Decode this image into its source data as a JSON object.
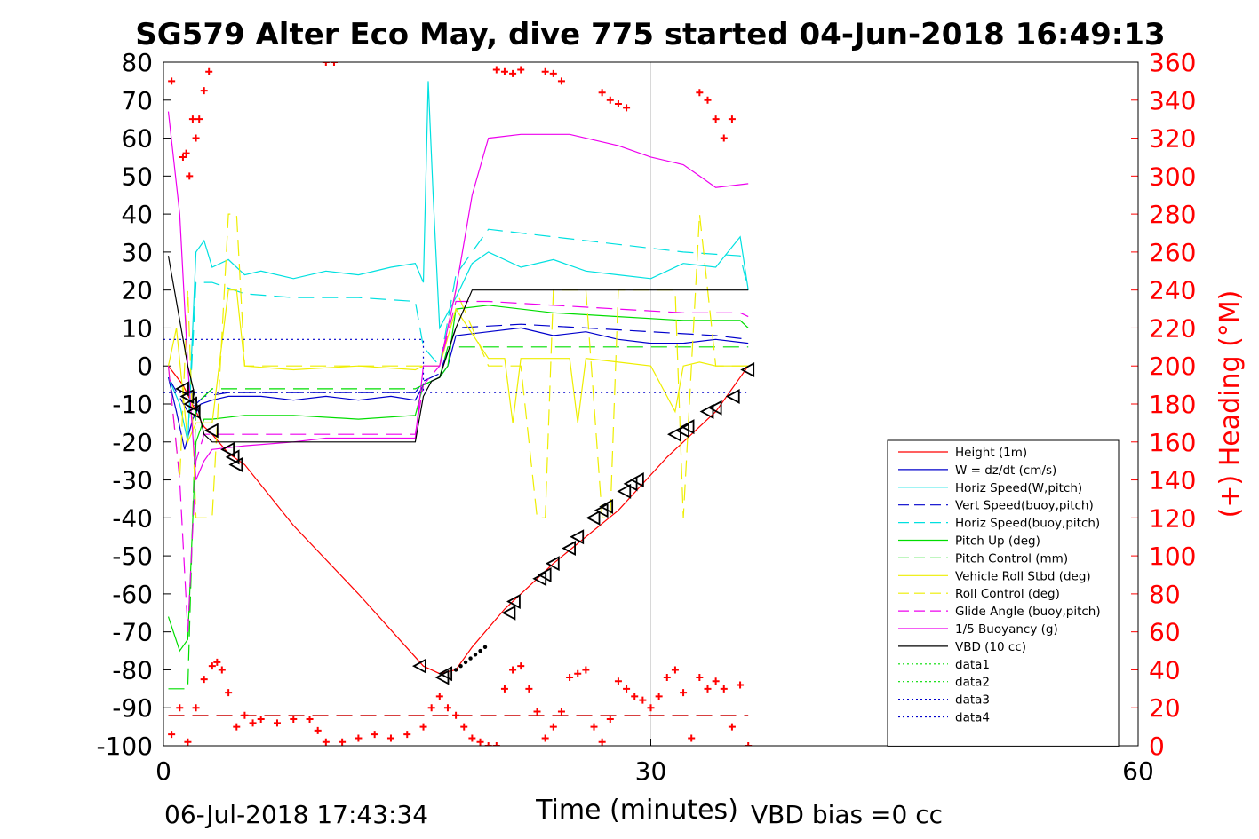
{
  "chart_data": {
    "type": "line",
    "title": "SG579 Alter Eco May, dive 775 started 04-Jun-2018 16:49:13",
    "xlabel": "Time (minutes)",
    "ylabel_right": "(+) Heading (°M)",
    "footer_left": "06-Jul-2018 17:43:34",
    "footer_right": "VBD bias =0 cc",
    "xlim": [
      0,
      60
    ],
    "ylim": [
      -100,
      80
    ],
    "ylim_right": [
      0,
      360
    ],
    "x_ticks": [
      0,
      30,
      60
    ],
    "x_tick_labels": [
      "0",
      "30",
      "60"
    ],
    "y_ticks": [
      80,
      70,
      60,
      50,
      40,
      30,
      20,
      10,
      0,
      -10,
      -20,
      -30,
      -40,
      -50,
      -60,
      -70,
      -80,
      -90,
      -100
    ],
    "y_tick_labels": [
      "80",
      "70",
      "60",
      "50",
      "40",
      "30",
      "20",
      "10",
      "0",
      "-10",
      "-20",
      "-30",
      "-40",
      "-50",
      "-60",
      "-70",
      "-80",
      "-90",
      "-100"
    ],
    "y_right_ticks": [
      360,
      340,
      320,
      300,
      280,
      260,
      240,
      220,
      200,
      180,
      160,
      140,
      120,
      100,
      80,
      60,
      40,
      20,
      0
    ],
    "y_right_tick_labels": [
      "360",
      "340",
      "320",
      "300",
      "280",
      "260",
      "240",
      "220",
      "200",
      "180",
      "160",
      "140",
      "120",
      "100",
      "80",
      "60",
      "40",
      "20",
      "0"
    ],
    "grid": "x-major only",
    "legend_position": "bottom-right",
    "colors": {
      "red": "#ff0000",
      "blue": "#0000cc",
      "cyan": "#00e0e0",
      "green": "#00dd00",
      "yellow": "#eeee00",
      "magenta": "#ee00ee",
      "black": "#000000",
      "heading": "#ff0000"
    },
    "series": [
      {
        "name": "Height (1m)",
        "color": "#ff0000",
        "dash": "solid",
        "x": [
          0.3,
          1.2,
          2.0,
          2.5,
          3.0,
          4.0,
          5.0,
          8.0,
          12.0,
          16.0,
          17.0,
          18.0,
          19.0,
          21.0,
          24.0,
          28.0,
          31.0,
          34.0,
          36.0
        ],
        "y": [
          0,
          -5,
          -12,
          -16,
          -18,
          -23,
          -26,
          -42,
          -60,
          -79,
          -81,
          -80,
          -74,
          -64,
          -52,
          -38,
          -24,
          -12,
          0
        ]
      },
      {
        "name": "W = dz/dt (cm/s)",
        "color": "#0000cc",
        "dash": "solid",
        "x": [
          0.3,
          0.8,
          1.3,
          1.8,
          2.3,
          3.0,
          4.0,
          6.0,
          8.0,
          10.0,
          12.0,
          14.0,
          15.5,
          16.0,
          17.0,
          17.5,
          18.0,
          20.0,
          22.0,
          24.0,
          26.0,
          28.0,
          30.0,
          32.0,
          34.0,
          36.0
        ],
        "y": [
          -3,
          -12,
          -22,
          -14,
          -10,
          -9,
          -8,
          -8,
          -9,
          -8,
          -9,
          -8,
          -9,
          -5,
          -3,
          0,
          8,
          9,
          10,
          8,
          9,
          7,
          6,
          6,
          7,
          6
        ]
      },
      {
        "name": "Horiz Speed(W,pitch)",
        "color": "#00e0e0",
        "dash": "solid",
        "x": [
          0.3,
          1.0,
          1.5,
          2.0,
          2.5,
          3.0,
          4.0,
          5.0,
          6.0,
          8.0,
          10.0,
          12.0,
          14.0,
          15.5,
          16.0,
          16.3,
          16.6,
          17.0,
          18.0,
          19.0,
          20.0,
          22.0,
          24.0,
          26.0,
          28.0,
          30.0,
          32.0,
          34.0,
          35.5,
          36.0
        ],
        "y": [
          -3,
          -10,
          -20,
          30,
          33,
          26,
          28,
          24,
          25,
          23,
          25,
          24,
          26,
          27,
          22,
          75,
          45,
          10,
          18,
          27,
          30,
          26,
          28,
          25,
          24,
          23,
          27,
          26,
          34,
          20
        ]
      },
      {
        "name": "Vert Speed(buoy,pitch)",
        "color": "#0000cc",
        "dash": "long-dash",
        "x": [
          0.3,
          1.5,
          2.5,
          4.0,
          8.0,
          12.0,
          15.5,
          16.0,
          17.0,
          18.0,
          22.0,
          26.0,
          30.0,
          34.0,
          36.0
        ],
        "y": [
          -3,
          -12,
          -8,
          -7,
          -7,
          -7,
          -7,
          -4,
          -2,
          10,
          11,
          10,
          9,
          8,
          7
        ]
      },
      {
        "name": "Horiz Speed(buoy,pitch)",
        "color": "#00e0e0",
        "dash": "long-dash",
        "x": [
          1.5,
          2.0,
          3.0,
          5.0,
          8.0,
          12.0,
          15.5,
          16.0,
          17.0,
          18.0,
          20.0,
          24.0,
          28.0,
          32.0,
          35.5,
          36.0
        ],
        "y": [
          -20,
          22,
          22,
          19,
          18,
          18,
          17,
          5,
          0,
          24,
          36,
          34,
          32,
          30,
          29,
          20
        ]
      },
      {
        "name": "Pitch Up (deg)",
        "color": "#00dd00",
        "dash": "solid",
        "x": [
          0.3,
          1.0,
          1.5,
          2.0,
          2.5,
          3.0,
          5.0,
          8.0,
          12.0,
          15.5,
          16.0,
          17.0,
          17.5,
          18.0,
          20.0,
          24.0,
          28.0,
          32.0,
          35.5,
          36.0
        ],
        "y": [
          -66,
          -75,
          -72,
          -20,
          -14,
          -14,
          -13,
          -13,
          -14,
          -13,
          -5,
          -3,
          0,
          15,
          16,
          14,
          13,
          12,
          12,
          10
        ]
      },
      {
        "name": "Pitch Control (mm)",
        "color": "#00dd00",
        "dash": "long-dash",
        "x": [
          0.3,
          1.5,
          2.0,
          3.0,
          8.0,
          12.0,
          15.5,
          16.0,
          17.0,
          17.5,
          18.0,
          22.0,
          26.0,
          30.0,
          34.0,
          36.0
        ],
        "y": [
          -85,
          -85,
          -10,
          -6,
          -6,
          -6,
          -6,
          -5,
          -3,
          5,
          5,
          5,
          5,
          5,
          5,
          5
        ]
      },
      {
        "name": "Vehicle Roll Stbd (deg)",
        "color": "#eeee00",
        "dash": "solid",
        "x": [
          0.3,
          0.8,
          1.5,
          2.0,
          3.0,
          4.0,
          4.5,
          5.0,
          8.0,
          12.0,
          15.5,
          16.0,
          17.0,
          18.0,
          20.0,
          21.0,
          21.5,
          22.0,
          24.0,
          25.0,
          25.5,
          26.0,
          28.0,
          30.0,
          31.5,
          32.0,
          33.0,
          34.0,
          36.0
        ],
        "y": [
          0,
          10,
          -20,
          -15,
          -15,
          20,
          20,
          0,
          -1,
          0,
          -1,
          0,
          0,
          15,
          2,
          2,
          -15,
          2,
          2,
          2,
          -15,
          2,
          1,
          0,
          -12,
          0,
          1,
          0,
          0
        ]
      },
      {
        "name": "Roll Control (deg)",
        "color": "#eeee00",
        "dash": "long-dash",
        "x": [
          0.3,
          1.0,
          1.5,
          2.0,
          3.0,
          4.0,
          4.5,
          5.0,
          8.0,
          12.0,
          16.0,
          17.0,
          18.0,
          20.0,
          22.0,
          23.0,
          23.5,
          24.0,
          26.0,
          27.0,
          27.5,
          28.0,
          31.5,
          32.0,
          33.0,
          34.0,
          36.0
        ],
        "y": [
          0,
          -30,
          20,
          -40,
          -40,
          40,
          40,
          0,
          0,
          0,
          0,
          0,
          20,
          0,
          0,
          -40,
          -40,
          20,
          20,
          -40,
          -40,
          20,
          20,
          -40,
          40,
          0,
          0
        ]
      },
      {
        "name": "Glide Angle (buoy,pitch)",
        "color": "#ee00ee",
        "dash": "long-dash",
        "x": [
          0.3,
          1.0,
          1.5,
          2.0,
          2.5,
          3.0,
          5.0,
          8.0,
          12.0,
          15.5,
          16.0,
          17.0,
          18.0,
          20.0,
          24.0,
          28.0,
          32.0,
          35.5,
          36.0
        ],
        "y": [
          0,
          -30,
          -70,
          -25,
          -18,
          -18,
          -18,
          -18,
          -18,
          -18,
          -5,
          0,
          17,
          17,
          16,
          15,
          14,
          14,
          13
        ]
      },
      {
        "name": "1/5 Buoyancy (g)",
        "color": "#ee00ee",
        "dash": "solid",
        "x": [
          0.3,
          1.0,
          1.5,
          2.0,
          2.5,
          3.0,
          5.0,
          8.0,
          10.0,
          12.0,
          15.5,
          16.0,
          17.0,
          18.0,
          19.0,
          20.0,
          22.0,
          25.0,
          27.0,
          28.0,
          30.0,
          32.0,
          33.0,
          34.0,
          36.0
        ],
        "y": [
          67,
          40,
          0,
          -30,
          -25,
          -22,
          -21,
          -20,
          -19,
          -19,
          -19,
          0,
          0,
          20,
          45,
          60,
          61,
          61,
          59,
          58,
          55,
          53,
          50,
          47,
          48
        ]
      },
      {
        "name": "VBD (10 cc)",
        "color": "#000000",
        "dash": "solid",
        "x": [
          0.3,
          1.5,
          2.5,
          3.0,
          8.0,
          12.0,
          15.5,
          16.0,
          16.5,
          17.0,
          18.0,
          19.0,
          20.0,
          24.0,
          28.0,
          32.0,
          36.0
        ],
        "y": [
          29,
          0,
          -18,
          -20,
          -20,
          -20,
          -20,
          -8,
          -4,
          -3,
          10,
          20,
          20,
          20,
          20,
          20,
          20
        ]
      },
      {
        "name": "data1",
        "color": "#00dd00",
        "dash": "dotted",
        "x": [],
        "y": []
      },
      {
        "name": "data2",
        "color": "#00dd00",
        "dash": "dotted",
        "x": [],
        "y": []
      },
      {
        "name": "data3",
        "color": "#0000cc",
        "dash": "dotted",
        "x": [
          0,
          16,
          16,
          36
        ],
        "y": [
          7,
          7,
          -7,
          -7
        ]
      },
      {
        "name": "data4",
        "color": "#0000cc",
        "dash": "dotted",
        "x": [
          0,
          16
        ],
        "y": [
          -7,
          -7
        ]
      }
    ],
    "heading_reference_line": {
      "color": "#cc0000",
      "dash": "long-dash",
      "x": [
        0.3,
        36.0
      ],
      "heading": [
        16,
        16
      ]
    },
    "heading_points": {
      "marker": "+",
      "color": "#ff0000",
      "x": [
        0.5,
        1.2,
        1.4,
        1.6,
        1.8,
        2.0,
        2.2,
        2.5,
        2.8,
        0.5,
        1.0,
        1.5,
        2.0,
        2.5,
        3.0,
        3.3,
        3.6,
        4.0,
        4.5,
        5.0,
        5.5,
        6.0,
        7.0,
        8.0,
        9.0,
        9.5,
        10.0,
        11.0,
        12.0,
        13.0,
        14.0,
        15.0,
        16.0,
        16.5,
        17.0,
        17.5,
        18.0,
        18.5,
        19.0,
        19.5,
        20.0,
        20.5,
        21.0,
        21.5,
        22.0,
        22.5,
        23.0,
        23.5,
        24.0,
        24.5,
        25.0,
        25.5,
        26.0,
        26.5,
        27.0,
        27.5,
        28.0,
        28.5,
        29.0,
        29.5,
        30.0,
        30.5,
        31.0,
        31.5,
        32.0,
        32.5,
        33.0,
        33.5,
        34.0,
        34.5,
        35.0,
        35.5,
        36.0,
        10.0,
        10.5,
        20.5,
        21.0,
        21.5,
        22.0,
        23.5,
        24.0,
        24.5,
        27.0,
        27.5,
        28.0,
        28.5,
        33.0,
        33.5,
        34.0,
        34.5,
        35.0
      ],
      "heading": [
        350,
        310,
        312,
        300,
        330,
        320,
        330,
        345,
        355,
        6,
        20,
        2,
        20,
        35,
        42,
        44,
        40,
        28,
        10,
        16,
        12,
        14,
        12,
        14,
        14,
        8,
        2,
        2,
        4,
        6,
        4,
        6,
        10,
        20,
        26,
        20,
        16,
        10,
        4,
        2,
        0,
        0,
        30,
        40,
        42,
        30,
        18,
        4,
        10,
        18,
        36,
        38,
        40,
        10,
        2,
        14,
        34,
        30,
        26,
        24,
        20,
        26,
        36,
        40,
        28,
        4,
        36,
        30,
        34,
        30,
        10,
        32,
        0,
        360,
        360,
        356,
        355,
        354,
        356,
        355,
        354,
        350,
        344,
        340,
        338,
        336,
        344,
        340,
        330,
        320,
        330
      ]
    },
    "triangle_markers": {
      "x": [
        1.2,
        1.5,
        1.7,
        1.9,
        3.0,
        4.0,
        4.3,
        4.5,
        15.8,
        17.2,
        17.4,
        21.3,
        21.6,
        23.2,
        23.5,
        24.0,
        25.0,
        25.5,
        26.5,
        27.0,
        27.3,
        28.4,
        28.8,
        29.2,
        31.5,
        32.0,
        32.3,
        33.5,
        34.0,
        35.1,
        36.0
      ],
      "y": [
        -6,
        -8,
        -10,
        -12,
        -17,
        -22,
        -24,
        -26,
        -79,
        -82,
        -81,
        -65,
        -62,
        -56,
        -55,
        -52,
        -48,
        -45,
        -40,
        -38,
        -37,
        -33,
        -31,
        -30,
        -18,
        -17,
        -16,
        -12,
        -11,
        -8,
        -1
      ]
    },
    "dot_markers": {
      "x": [
        18.0,
        18.3,
        18.6,
        18.9,
        19.2,
        19.5,
        19.8
      ],
      "y": [
        -80,
        -79,
        -78,
        -77,
        -76,
        -75,
        -74
      ]
    }
  }
}
